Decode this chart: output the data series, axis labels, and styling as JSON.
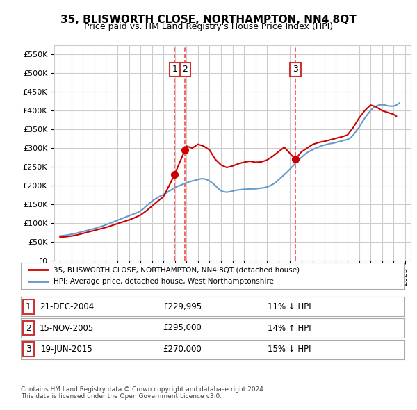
{
  "title": "35, BLISWORTH CLOSE, NORTHAMPTON, NN4 8QT",
  "subtitle": "Price paid vs. HM Land Registry's House Price Index (HPI)",
  "legend_label_red": "35, BLISWORTH CLOSE, NORTHAMPTON, NN4 8QT (detached house)",
  "legend_label_blue": "HPI: Average price, detached house, West Northamptonshire",
  "footer1": "Contains HM Land Registry data © Crown copyright and database right 2024.",
  "footer2": "This data is licensed under the Open Government Licence v3.0.",
  "ylim": [
    0,
    575000
  ],
  "yticks": [
    0,
    50000,
    100000,
    150000,
    200000,
    250000,
    300000,
    350000,
    400000,
    450000,
    500000,
    550000
  ],
  "ytick_labels": [
    "£0",
    "£50K",
    "£100K",
    "£150K",
    "£200K",
    "£250K",
    "£300K",
    "£350K",
    "£400K",
    "£450K",
    "£500K",
    "£550K"
  ],
  "sales": [
    {
      "label": "1",
      "date": "21-DEC-2004",
      "price": 229995,
      "pct": "11%",
      "dir": "↓",
      "x": 2004.97
    },
    {
      "label": "2",
      "date": "15-NOV-2005",
      "price": 295000,
      "pct": "14%",
      "dir": "↑",
      "x": 2005.88
    },
    {
      "label": "3",
      "date": "19-JUN-2015",
      "price": 270000,
      "pct": "15%",
      "dir": "↓",
      "x": 2015.47
    }
  ],
  "hpi_x": [
    1995,
    1995.25,
    1995.5,
    1995.75,
    1996,
    1996.25,
    1996.5,
    1996.75,
    1997,
    1997.25,
    1997.5,
    1997.75,
    1998,
    1998.25,
    1998.5,
    1998.75,
    1999,
    1999.25,
    1999.5,
    1999.75,
    2000,
    2000.25,
    2000.5,
    2000.75,
    2001,
    2001.25,
    2001.5,
    2001.75,
    2002,
    2002.25,
    2002.5,
    2002.75,
    2003,
    2003.25,
    2003.5,
    2003.75,
    2004,
    2004.25,
    2004.5,
    2004.75,
    2005,
    2005.25,
    2005.5,
    2005.75,
    2006,
    2006.25,
    2006.5,
    2006.75,
    2007,
    2007.25,
    2007.5,
    2007.75,
    2008,
    2008.25,
    2008.5,
    2008.75,
    2009,
    2009.25,
    2009.5,
    2009.75,
    2010,
    2010.25,
    2010.5,
    2010.75,
    2011,
    2011.25,
    2011.5,
    2011.75,
    2012,
    2012.25,
    2012.5,
    2012.75,
    2013,
    2013.25,
    2013.5,
    2013.75,
    2014,
    2014.25,
    2014.5,
    2014.75,
    2015,
    2015.25,
    2015.5,
    2015.75,
    2016,
    2016.25,
    2016.5,
    2016.75,
    2017,
    2017.25,
    2017.5,
    2017.75,
    2018,
    2018.25,
    2018.5,
    2018.75,
    2019,
    2019.25,
    2019.5,
    2019.75,
    2020,
    2020.25,
    2020.5,
    2020.75,
    2021,
    2021.25,
    2021.5,
    2021.75,
    2022,
    2022.25,
    2022.5,
    2022.75,
    2023,
    2023.25,
    2023.5,
    2023.75,
    2024,
    2024.25,
    2024.5
  ],
  "hpi_y": [
    65000,
    66000,
    67000,
    68000,
    70000,
    71000,
    73000,
    75000,
    77000,
    79000,
    81000,
    83000,
    85000,
    87000,
    90000,
    92000,
    95000,
    98000,
    101000,
    104000,
    107000,
    110000,
    113000,
    116000,
    119000,
    122000,
    125000,
    128000,
    132000,
    138000,
    145000,
    152000,
    158000,
    163000,
    168000,
    172000,
    176000,
    180000,
    185000,
    190000,
    195000,
    198000,
    201000,
    204000,
    207000,
    210000,
    212000,
    214000,
    216000,
    218000,
    218000,
    216000,
    212000,
    207000,
    200000,
    192000,
    186000,
    183000,
    182000,
    183000,
    185000,
    187000,
    188000,
    189000,
    190000,
    190000,
    191000,
    191000,
    191000,
    192000,
    193000,
    194000,
    196000,
    199000,
    203000,
    208000,
    215000,
    222000,
    229000,
    236000,
    244000,
    252000,
    260000,
    268000,
    275000,
    282000,
    288000,
    292000,
    296000,
    300000,
    303000,
    306000,
    308000,
    310000,
    312000,
    313000,
    315000,
    317000,
    319000,
    321000,
    323000,
    327000,
    335000,
    345000,
    355000,
    368000,
    380000,
    390000,
    400000,
    408000,
    412000,
    415000,
    416000,
    415000,
    413000,
    412000,
    412000,
    415000,
    420000
  ],
  "price_paid_x": [
    1995,
    1995.5,
    1996,
    1996.5,
    1997,
    1997.5,
    1998,
    1998.5,
    1999,
    1999.5,
    2000,
    2000.5,
    2001,
    2001.5,
    2002,
    2002.5,
    2003,
    2003.5,
    2004,
    2004.5,
    2004.97,
    2005.88,
    2006,
    2006.5,
    2007,
    2007.5,
    2008,
    2008.5,
    2009,
    2009.5,
    2010,
    2010.5,
    2011,
    2011.5,
    2012,
    2012.5,
    2013,
    2013.5,
    2014,
    2014.5,
    2015.47,
    2016,
    2016.5,
    2017,
    2017.5,
    2018,
    2018.5,
    2019,
    2019.5,
    2020,
    2020.5,
    2021,
    2021.5,
    2022,
    2022.5,
    2023,
    2023.5,
    2024,
    2024.25
  ],
  "price_paid_y": [
    62000,
    63000,
    65000,
    68000,
    72000,
    76000,
    80000,
    84000,
    88000,
    93000,
    98000,
    103000,
    108000,
    114000,
    121000,
    132000,
    145000,
    158000,
    170000,
    200000,
    229995,
    295000,
    305000,
    300000,
    310000,
    305000,
    295000,
    270000,
    255000,
    248000,
    252000,
    258000,
    262000,
    265000,
    262000,
    263000,
    268000,
    278000,
    290000,
    302000,
    270000,
    290000,
    300000,
    310000,
    315000,
    318000,
    322000,
    326000,
    330000,
    335000,
    355000,
    380000,
    400000,
    415000,
    410000,
    400000,
    395000,
    390000,
    385000
  ],
  "bg_color": "#ffffff",
  "grid_color": "#cccccc",
  "red_color": "#cc0000",
  "blue_color": "#6699cc",
  "vline_color": "#ff4444",
  "box_color": "#cc3333",
  "xmin": 1994.5,
  "xmax": 2025.5
}
